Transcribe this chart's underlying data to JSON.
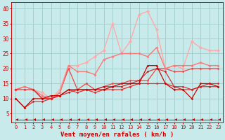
{
  "xlabel": "Vent moyen/en rafales ( km/h )",
  "xlim": [
    -0.5,
    23.5
  ],
  "ylim": [
    2,
    42
  ],
  "yticks": [
    5,
    10,
    15,
    20,
    25,
    30,
    35,
    40
  ],
  "xticks": [
    0,
    1,
    2,
    3,
    4,
    5,
    6,
    7,
    8,
    9,
    10,
    11,
    12,
    13,
    14,
    15,
    16,
    17,
    18,
    19,
    20,
    21,
    22,
    23
  ],
  "bg_color": "#c8eaea",
  "grid_color": "#a0cccc",
  "lines": [
    {
      "x": [
        0,
        1,
        2,
        3,
        4,
        5,
        6,
        7,
        8,
        9,
        10,
        11,
        12,
        13,
        14,
        15,
        16,
        17,
        18,
        19,
        20,
        21,
        22,
        23
      ],
      "y": [
        10,
        7,
        10,
        10,
        11,
        11,
        13,
        13,
        13,
        13,
        13,
        14,
        15,
        15,
        15,
        21,
        21,
        15,
        13,
        13,
        10,
        15,
        15,
        14
      ],
      "color": "#cc0000",
      "lw": 0.9,
      "marker": "D",
      "ms": 1.8,
      "alpha": 1.0,
      "zorder": 5
    },
    {
      "x": [
        0,
        1,
        2,
        3,
        4,
        5,
        6,
        7,
        8,
        9,
        10,
        11,
        12,
        13,
        14,
        15,
        16,
        17,
        18,
        19,
        20,
        21,
        22,
        23
      ],
      "y": [
        10,
        7,
        9,
        9,
        10,
        11,
        12,
        13,
        13,
        13,
        14,
        14,
        14,
        15,
        16,
        19,
        20,
        19,
        14,
        13,
        13,
        14,
        14,
        14
      ],
      "color": "#cc0000",
      "lw": 0.9,
      "marker": "D",
      "ms": 1.8,
      "alpha": 0.75,
      "zorder": 4
    },
    {
      "x": [
        0,
        1,
        2,
        3,
        4,
        5,
        6,
        7,
        8,
        9,
        10,
        11,
        12,
        13,
        14,
        15,
        16,
        17,
        18,
        19,
        20,
        21,
        22,
        23
      ],
      "y": [
        13,
        13,
        13,
        10,
        10,
        11,
        13,
        12,
        13,
        12,
        13,
        13,
        13,
        14,
        15,
        15,
        15,
        15,
        14,
        14,
        13,
        14,
        15,
        15
      ],
      "color": "#dd2222",
      "lw": 0.9,
      "marker": "D",
      "ms": 1.8,
      "alpha": 0.9,
      "zorder": 4
    },
    {
      "x": [
        0,
        1,
        2,
        3,
        4,
        5,
        6,
        7,
        8,
        9,
        10,
        11,
        12,
        13,
        14,
        15,
        16,
        17,
        18,
        19,
        20,
        21,
        22,
        23
      ],
      "y": [
        13,
        14,
        13,
        10,
        10,
        12,
        20,
        13,
        15,
        13,
        14,
        15,
        15,
        16,
        16,
        16,
        20,
        20,
        19,
        19,
        20,
        20,
        20,
        20
      ],
      "color": "#ee4444",
      "lw": 0.9,
      "marker": "D",
      "ms": 1.8,
      "alpha": 1.0,
      "zorder": 3
    },
    {
      "x": [
        0,
        1,
        2,
        3,
        4,
        5,
        6,
        7,
        8,
        9,
        10,
        11,
        12,
        13,
        14,
        15,
        16,
        17,
        18,
        19,
        20,
        21,
        22,
        23
      ],
      "y": [
        13,
        14,
        13,
        11,
        10,
        12,
        21,
        19,
        19,
        18,
        23,
        24,
        25,
        25,
        25,
        24,
        27,
        20,
        21,
        21,
        21,
        22,
        21,
        21
      ],
      "color": "#ff7777",
      "lw": 1.0,
      "marker": "D",
      "ms": 2.0,
      "alpha": 1.0,
      "zorder": 3
    },
    {
      "x": [
        0,
        1,
        2,
        3,
        4,
        5,
        6,
        7,
        8,
        9,
        10,
        11,
        12,
        13,
        14,
        15,
        16,
        17,
        18,
        19,
        20,
        21,
        22,
        23
      ],
      "y": [
        13,
        14,
        13,
        12,
        10,
        13,
        21,
        21,
        22,
        24,
        26,
        35,
        25,
        29,
        38,
        39,
        33,
        20,
        21,
        20,
        29,
        27,
        26,
        26
      ],
      "color": "#ffaaaa",
      "lw": 1.0,
      "marker": "D",
      "ms": 2.5,
      "alpha": 1.0,
      "zorder": 2
    },
    {
      "x": [
        0,
        1,
        2,
        3,
        4,
        5,
        6,
        7,
        8,
        9,
        10,
        11,
        12,
        13,
        14,
        15,
        16,
        17,
        18,
        19,
        20,
        21,
        22,
        23
      ],
      "y": [
        3,
        3,
        3,
        3,
        3,
        3,
        3,
        3,
        3,
        3,
        3,
        3,
        3,
        3,
        3,
        3,
        3,
        3,
        3,
        3,
        3,
        3,
        3,
        3
      ],
      "color": "#cc0000",
      "lw": 0.7,
      "marker": 4,
      "ms": 3.5,
      "alpha": 1.0,
      "zorder": 6
    }
  ]
}
